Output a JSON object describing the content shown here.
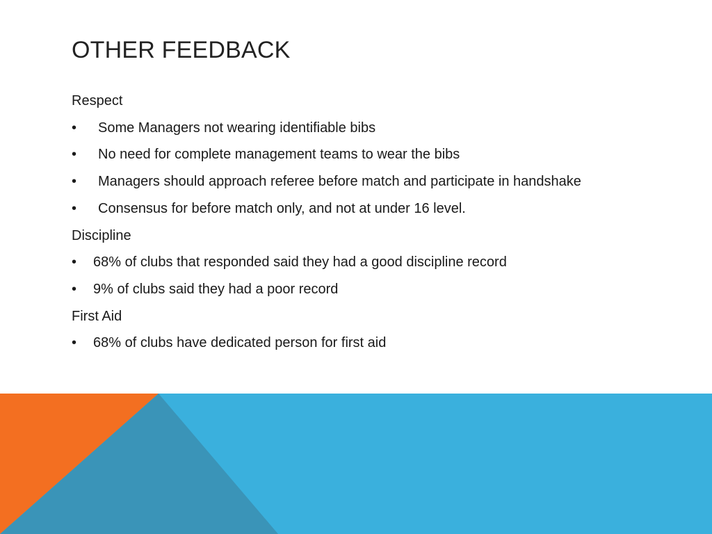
{
  "slide": {
    "title": "OTHER FEEDBACK",
    "sections": [
      {
        "heading": "Respect",
        "bullet_style": "sub",
        "items": [
          "Some Managers not wearing identifiable bibs",
          "No need for complete management teams to wear the bibs",
          "Managers should approach referee before match and participate in handshake",
          "Consensus for before match only, and not at under 16 level."
        ]
      },
      {
        "heading": "Discipline",
        "bullet_style": "plain",
        "items": [
          "68% of clubs that responded said they had a good discipline record",
          "9% of clubs said they had a poor record"
        ]
      },
      {
        "heading": "First Aid",
        "bullet_style": "plain",
        "items": [
          "68% of clubs have dedicated person for first aid"
        ]
      }
    ],
    "bullet_glyph": "•"
  },
  "theme": {
    "blue": "#3AB0DD",
    "dark_blue": "#3A94B8",
    "orange": "#F36F21"
  }
}
